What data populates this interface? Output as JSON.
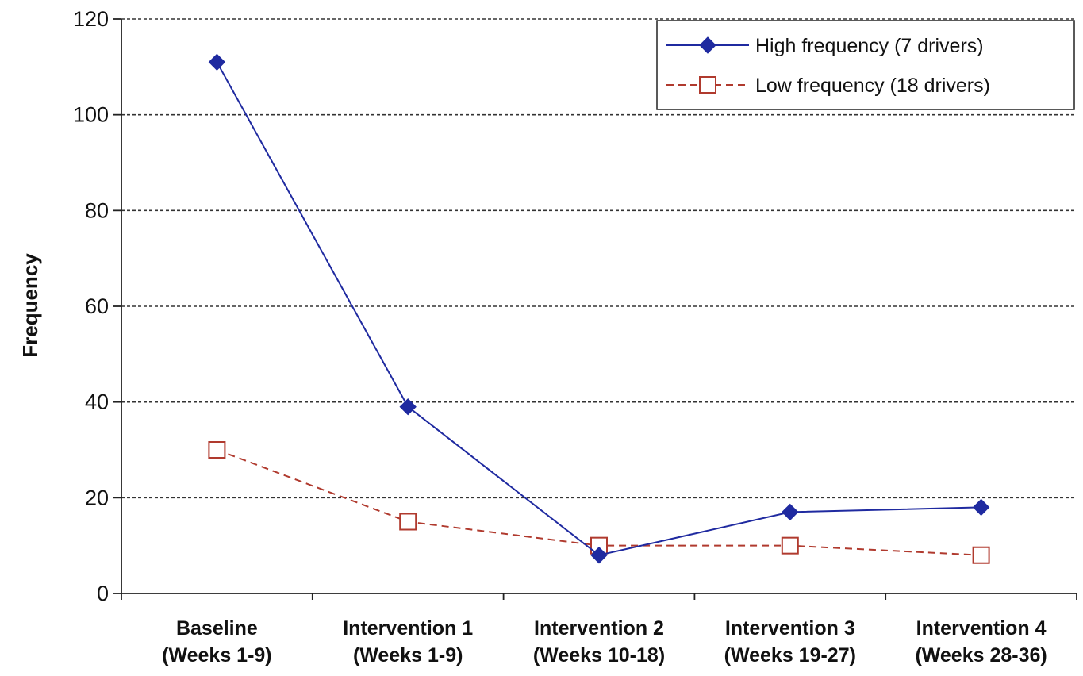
{
  "chart_data": {
    "type": "line",
    "ylabel": "Frequency",
    "xlabel": "",
    "ylim": [
      0,
      120
    ],
    "yticks": [
      0,
      20,
      40,
      60,
      80,
      100,
      120
    ],
    "grid": "horizontal dashed",
    "legend_position": "top-right",
    "categories": [
      [
        "Baseline",
        "(Weeks 1-9)"
      ],
      [
        "Intervention 1",
        "(Weeks 1-9)"
      ],
      [
        "Intervention 2",
        "(Weeks 10-18)"
      ],
      [
        "Intervention 3",
        "(Weeks 19-27)"
      ],
      [
        "Intervention 4",
        "(Weeks 28-36)"
      ]
    ],
    "series": [
      {
        "name": "High frequency (7 drivers)",
        "values": [
          111,
          39,
          8,
          17,
          18
        ],
        "color": "#1f2aa0",
        "line_style": "solid",
        "marker": "filled-diamond"
      },
      {
        "name": "Low frequency (18 drivers)",
        "values": [
          30,
          15,
          10,
          10,
          8
        ],
        "color": "#b03a2e",
        "line_style": "dashed",
        "marker": "open-square"
      }
    ]
  }
}
